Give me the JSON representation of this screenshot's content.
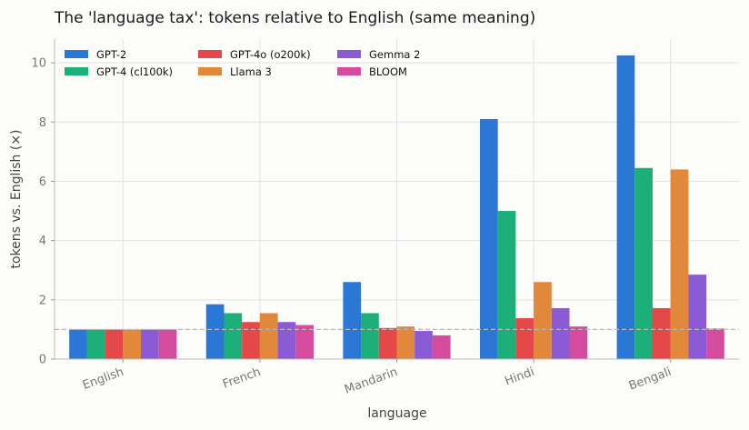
{
  "chart_data": {
    "type": "bar",
    "title": "The 'language tax': tokens relative to English (same meaning)",
    "xlabel": "language",
    "ylabel": "tokens vs. English (×)",
    "categories": [
      "English",
      "French",
      "Mandarin",
      "Hindi",
      "Bengali"
    ],
    "series": [
      {
        "name": "GPT-2",
        "color": "#2b77d6",
        "values": [
          1.0,
          1.85,
          2.6,
          8.1,
          10.25
        ]
      },
      {
        "name": "GPT-4 (cl100k)",
        "color": "#1caf7a",
        "values": [
          1.0,
          1.55,
          1.55,
          5.0,
          6.45
        ]
      },
      {
        "name": "GPT-4o (o200k)",
        "color": "#e54848",
        "values": [
          1.0,
          1.25,
          1.05,
          1.38,
          1.72
        ]
      },
      {
        "name": "Llama 3",
        "color": "#e2883a",
        "values": [
          1.0,
          1.55,
          1.1,
          2.6,
          6.4
        ]
      },
      {
        "name": "Gemma 2",
        "color": "#8a5bd4",
        "values": [
          1.0,
          1.25,
          0.95,
          1.72,
          2.85
        ]
      },
      {
        "name": "BLOOM",
        "color": "#d54c9f",
        "values": [
          1.0,
          1.15,
          0.8,
          1.1,
          1.03
        ]
      }
    ],
    "ylim": [
      0,
      10.8
    ],
    "yticks": [
      "0",
      "2",
      "4",
      "6",
      "8",
      "10"
    ],
    "reference_line": 1.0,
    "grid": true,
    "legend_position": "top-left"
  }
}
